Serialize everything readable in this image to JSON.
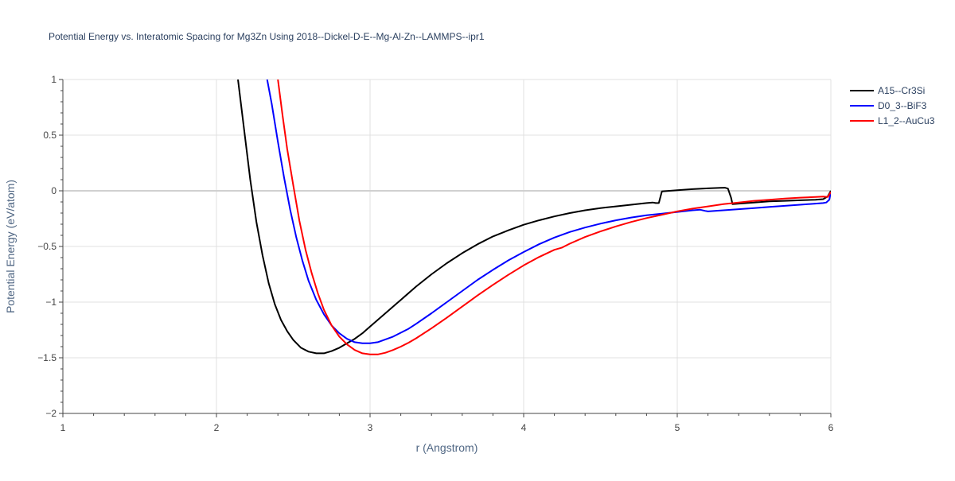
{
  "chart_data": {
    "type": "line",
    "title": "Potential Energy vs. Interatomic Spacing for Mg3Zn Using 2018--Dickel-D-E--Mg-Al-Zn--LAMMPS--ipr1",
    "xlabel": "r (Angstrom)",
    "ylabel": "Potential Energy (eV/atom)",
    "xlim": [
      1,
      6
    ],
    "ylim": [
      -2,
      1
    ],
    "x_ticks": [
      1,
      2,
      3,
      4,
      5,
      6
    ],
    "x_tick_labels": [
      "1",
      "2",
      "3",
      "4",
      "5",
      "6"
    ],
    "y_ticks": [
      -2,
      -1.5,
      -1,
      -0.5,
      0,
      0.5,
      1
    ],
    "y_tick_labels": [
      "−2",
      "−1.5",
      "−1",
      "−0.5",
      "0",
      "0.5",
      "1"
    ],
    "grid": true,
    "legend_position": "top-right",
    "series": [
      {
        "name": "A15--Cr3Si",
        "color": "#000000",
        "x": [
          2.14,
          2.18,
          2.22,
          2.26,
          2.3,
          2.34,
          2.38,
          2.42,
          2.46,
          2.5,
          2.55,
          2.6,
          2.65,
          2.7,
          2.75,
          2.8,
          2.85,
          2.9,
          2.95,
          3.0,
          3.05,
          3.1,
          3.2,
          3.3,
          3.4,
          3.5,
          3.6,
          3.7,
          3.8,
          3.9,
          4.0,
          4.1,
          4.2,
          4.3,
          4.4,
          4.5,
          4.6,
          4.7,
          4.8,
          4.84,
          4.86,
          4.88,
          4.9,
          5.0,
          5.1,
          5.2,
          5.28,
          5.31,
          5.33,
          5.35,
          5.36,
          5.4,
          5.5,
          5.6,
          5.7,
          5.8,
          5.9,
          5.95,
          5.98,
          6.0
        ],
        "y": [
          1.0,
          0.55,
          0.1,
          -0.28,
          -0.58,
          -0.83,
          -1.02,
          -1.16,
          -1.26,
          -1.34,
          -1.41,
          -1.445,
          -1.46,
          -1.46,
          -1.44,
          -1.41,
          -1.37,
          -1.33,
          -1.28,
          -1.22,
          -1.16,
          -1.1,
          -0.98,
          -0.86,
          -0.75,
          -0.65,
          -0.56,
          -0.48,
          -0.41,
          -0.355,
          -0.305,
          -0.265,
          -0.23,
          -0.2,
          -0.175,
          -0.155,
          -0.14,
          -0.125,
          -0.11,
          -0.105,
          -0.11,
          -0.11,
          -0.005,
          0.005,
          0.015,
          0.022,
          0.027,
          0.028,
          0.02,
          -0.06,
          -0.12,
          -0.115,
          -0.105,
          -0.095,
          -0.09,
          -0.085,
          -0.08,
          -0.075,
          -0.05,
          0.0
        ]
      },
      {
        "name": "D0_3--BiF3",
        "color": "#0000ff",
        "x": [
          2.33,
          2.36,
          2.4,
          2.44,
          2.48,
          2.52,
          2.56,
          2.6,
          2.65,
          2.7,
          2.75,
          2.8,
          2.85,
          2.9,
          2.95,
          3.0,
          3.05,
          3.1,
          3.15,
          3.2,
          3.25,
          3.3,
          3.4,
          3.5,
          3.6,
          3.7,
          3.8,
          3.9,
          4.0,
          4.1,
          4.2,
          4.3,
          4.4,
          4.5,
          4.6,
          4.7,
          4.8,
          4.9,
          5.0,
          5.1,
          5.15,
          5.18,
          5.2,
          5.3,
          5.4,
          5.5,
          5.6,
          5.7,
          5.8,
          5.9,
          5.95,
          5.97,
          5.99,
          6.0
        ],
        "y": [
          1.0,
          0.78,
          0.44,
          0.12,
          -0.17,
          -0.42,
          -0.63,
          -0.81,
          -0.98,
          -1.11,
          -1.21,
          -1.28,
          -1.33,
          -1.36,
          -1.37,
          -1.37,
          -1.36,
          -1.335,
          -1.31,
          -1.275,
          -1.24,
          -1.195,
          -1.1,
          -1.0,
          -0.9,
          -0.8,
          -0.71,
          -0.625,
          -0.55,
          -0.48,
          -0.42,
          -0.37,
          -0.33,
          -0.295,
          -0.265,
          -0.24,
          -0.22,
          -0.205,
          -0.19,
          -0.175,
          -0.17,
          -0.18,
          -0.185,
          -0.175,
          -0.165,
          -0.155,
          -0.145,
          -0.135,
          -0.125,
          -0.115,
          -0.11,
          -0.105,
          -0.08,
          -0.01
        ]
      },
      {
        "name": "L1_2--AuCu3",
        "color": "#ff0000",
        "x": [
          2.4,
          2.43,
          2.46,
          2.5,
          2.54,
          2.58,
          2.62,
          2.66,
          2.7,
          2.75,
          2.8,
          2.85,
          2.9,
          2.95,
          3.0,
          3.05,
          3.1,
          3.15,
          3.2,
          3.25,
          3.3,
          3.4,
          3.5,
          3.6,
          3.7,
          3.8,
          3.9,
          4.0,
          4.1,
          4.2,
          4.25,
          4.3,
          4.4,
          4.5,
          4.6,
          4.7,
          4.8,
          4.9,
          5.0,
          5.1,
          5.2,
          5.3,
          5.4,
          5.5,
          5.6,
          5.7,
          5.8,
          5.9,
          5.95,
          5.98,
          6.0
        ],
        "y": [
          1.0,
          0.68,
          0.38,
          0.05,
          -0.27,
          -0.53,
          -0.74,
          -0.92,
          -1.07,
          -1.21,
          -1.31,
          -1.38,
          -1.43,
          -1.46,
          -1.47,
          -1.47,
          -1.455,
          -1.43,
          -1.4,
          -1.365,
          -1.325,
          -1.235,
          -1.14,
          -1.04,
          -0.94,
          -0.845,
          -0.755,
          -0.67,
          -0.595,
          -0.53,
          -0.51,
          -0.475,
          -0.415,
          -0.365,
          -0.32,
          -0.28,
          -0.245,
          -0.215,
          -0.185,
          -0.16,
          -0.14,
          -0.12,
          -0.105,
          -0.09,
          -0.08,
          -0.07,
          -0.062,
          -0.055,
          -0.052,
          -0.055,
          -0.01
        ]
      }
    ]
  }
}
